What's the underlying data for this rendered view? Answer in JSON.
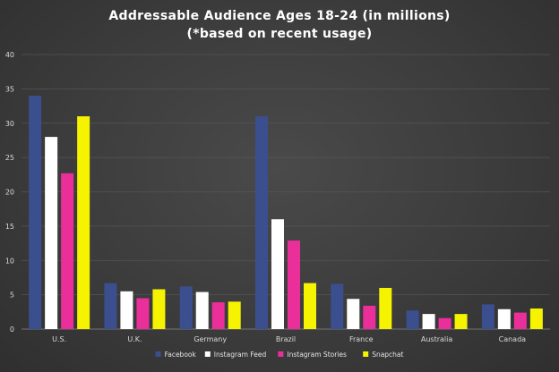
{
  "chart_data": {
    "type": "bar",
    "title": "Addressable Audience Ages 18-24 (in millions)",
    "subtitle": "(*based on recent usage)",
    "xlabel": "",
    "ylabel": "",
    "categories": [
      "U.S.",
      "U.K.",
      "Germany",
      "Brazil",
      "France",
      "Australia",
      "Canada"
    ],
    "ylim": [
      0,
      40
    ],
    "yticks": [
      0,
      5,
      10,
      15,
      20,
      25,
      30,
      35,
      40
    ],
    "grid": true,
    "legend_position": "bottom",
    "series": [
      {
        "name": "Facebook",
        "color": "#3b4f8f",
        "values": [
          34,
          6.7,
          6.2,
          31,
          6.6,
          2.7,
          3.6
        ]
      },
      {
        "name": "Instagram Feed",
        "color": "#ffffff",
        "values": [
          28,
          5.5,
          5.4,
          16,
          4.4,
          2.2,
          2.9
        ]
      },
      {
        "name": "Instagram Stories",
        "color": "#ea2f9b",
        "values": [
          22.7,
          4.5,
          3.9,
          12.9,
          3.4,
          1.6,
          2.4
        ]
      },
      {
        "name": "Snapchat",
        "color": "#f6f300",
        "values": [
          31,
          5.8,
          4.0,
          6.7,
          6.0,
          2.2,
          3.0
        ]
      }
    ]
  }
}
